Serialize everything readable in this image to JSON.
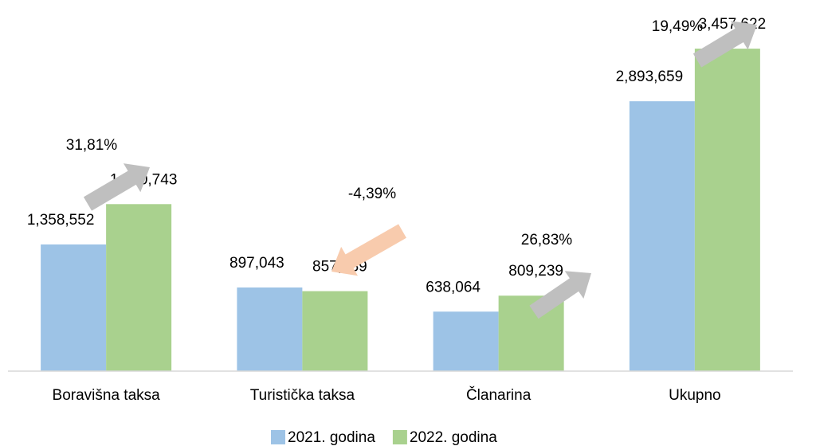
{
  "chart_data": {
    "type": "bar",
    "categories": [
      "Boravišna taksa",
      "Turistička taksa",
      "Članarina",
      "Ukupno"
    ],
    "series": [
      {
        "name": "2021. godina",
        "color": "#9dc3e6",
        "values": [
          1358552,
          897043,
          638064,
          2893659
        ],
        "value_labels": [
          "1,358,552",
          "897,043",
          "638,064",
          "2,893,659"
        ]
      },
      {
        "name": "2022. godina",
        "color": "#a9d18e",
        "values": [
          1790743,
          857639,
          809239,
          3457622
        ],
        "value_labels": [
          "1,790,743",
          "857,639",
          "809,239",
          "3,457,622"
        ]
      }
    ],
    "annotations": [
      {
        "value": 31.81,
        "label": "31,81%"
      },
      {
        "value": -4.39,
        "label": "-4,39%"
      },
      {
        "value": 26.83,
        "label": "26,83%"
      },
      {
        "value": 19.49,
        "label": "19,49%"
      }
    ],
    "ylim": [
      0,
      3800000
    ],
    "grid": false,
    "legend": "bottom"
  }
}
